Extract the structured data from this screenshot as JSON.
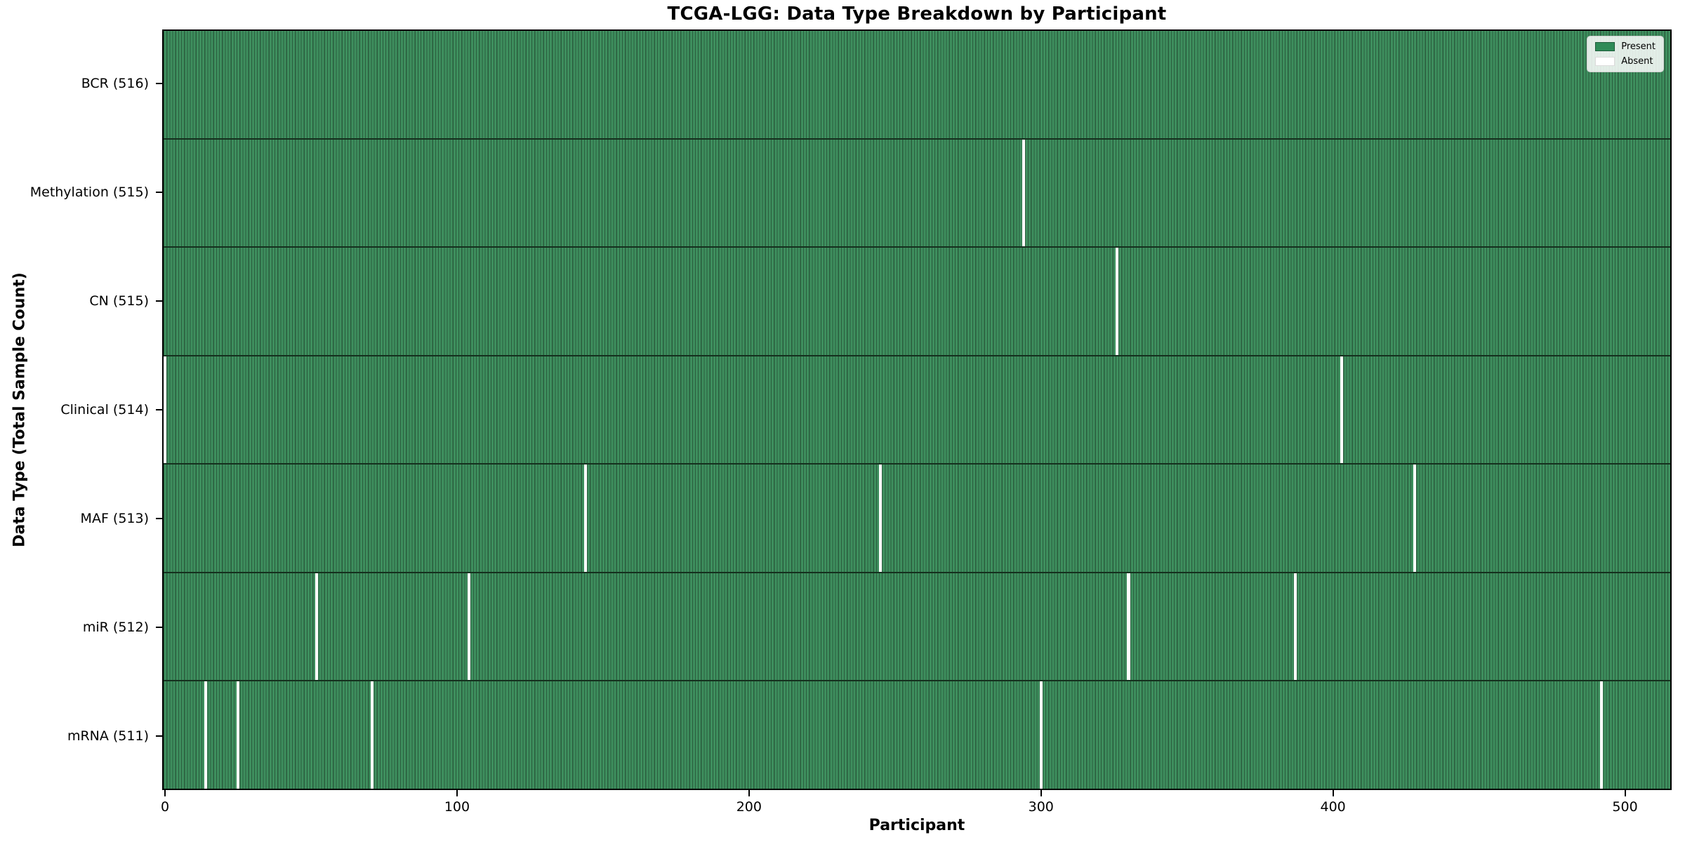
{
  "title": "TCGA-LGG: Data Type Breakdown by Participant",
  "chart_data": {
    "type": "heatmap",
    "title": "TCGA-LGG: Data Type Breakdown by Participant",
    "xlabel": "Participant",
    "ylabel": "Data Type (Total Sample Count)",
    "x_ticks": [
      0,
      100,
      200,
      300,
      400,
      500
    ],
    "x_range": [
      0,
      516
    ],
    "n_participants": 516,
    "grid": false,
    "legend": {
      "position": "upper right",
      "entries": [
        {
          "label": "Present",
          "color": "#2e8b57"
        },
        {
          "label": "Absent",
          "color": "#ffffff"
        }
      ]
    },
    "rows": [
      {
        "label": "BCR (516)",
        "data_type": "BCR",
        "total": 516,
        "absent_participants": []
      },
      {
        "label": "Methylation (515)",
        "data_type": "Methylation",
        "total": 515,
        "absent_participants": [
          294
        ]
      },
      {
        "label": "CN (515)",
        "data_type": "CN",
        "total": 515,
        "absent_participants": [
          326
        ]
      },
      {
        "label": "Clinical (514)",
        "data_type": "Clinical",
        "total": 514,
        "absent_participants": [
          0,
          403
        ]
      },
      {
        "label": "MAF (513)",
        "data_type": "MAF",
        "total": 513,
        "absent_participants": [
          144,
          245,
          428
        ]
      },
      {
        "label": "miR (512)",
        "data_type": "miR",
        "total": 512,
        "absent_participants": [
          52,
          104,
          330,
          387
        ]
      },
      {
        "label": "mRNA (511)",
        "data_type": "mRNA",
        "total": 511,
        "absent_participants": [
          14,
          25,
          71,
          300,
          492
        ]
      }
    ],
    "colors": {
      "present": "#2e8b57",
      "present_fill": "#3e8f5e",
      "bar_edge": "#2a5c3d",
      "row_border": "#15301e",
      "absent": "#ffffff"
    }
  }
}
